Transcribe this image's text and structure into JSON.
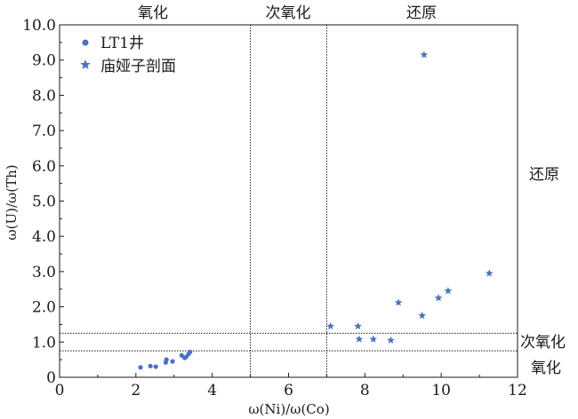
{
  "chart_data": {
    "type": "scatter",
    "xlabel": "ω(Ni)/ω(Co)",
    "ylabel": "ω(U)/ω(Th)",
    "xlim": [
      0,
      12
    ],
    "ylim": [
      0,
      10
    ],
    "x_ticks": [
      0,
      2,
      4,
      6,
      8,
      10,
      12
    ],
    "y_ticks": [
      0,
      1.0,
      2.0,
      3.0,
      4.0,
      5.0,
      6.0,
      7.0,
      8.0,
      9.0,
      10.0
    ],
    "x_tick_labels": [
      "0",
      "2",
      "4",
      "6",
      "8",
      "10",
      "12"
    ],
    "y_tick_labels": [
      "0",
      "1.0",
      "2.0",
      "3.0",
      "4.0",
      "5.0",
      "6.0",
      "7.0",
      "8.0",
      "9.0",
      "10.0"
    ],
    "grid": false,
    "legend_position": "top-left",
    "color": "#4a72c4",
    "series": [
      {
        "name": "LT1井",
        "marker": "circle",
        "points": [
          [
            2.12,
            0.28
          ],
          [
            2.38,
            0.32
          ],
          [
            2.52,
            0.3
          ],
          [
            2.78,
            0.42
          ],
          [
            2.8,
            0.5
          ],
          [
            2.96,
            0.45
          ],
          [
            3.2,
            0.62
          ],
          [
            3.28,
            0.55
          ],
          [
            3.32,
            0.58
          ],
          [
            3.38,
            0.66
          ],
          [
            3.42,
            0.72
          ]
        ]
      },
      {
        "name": "庙娅子剖面",
        "marker": "star",
        "points": [
          [
            7.1,
            1.45
          ],
          [
            7.82,
            1.45
          ],
          [
            7.85,
            1.08
          ],
          [
            8.22,
            1.08
          ],
          [
            8.68,
            1.05
          ],
          [
            8.88,
            2.12
          ],
          [
            9.5,
            1.75
          ],
          [
            9.93,
            2.25
          ],
          [
            10.18,
            2.45
          ],
          [
            11.26,
            2.95
          ],
          [
            9.55,
            9.15
          ]
        ]
      }
    ],
    "vertical_lines": [
      5.0,
      7.0
    ],
    "horizontal_lines": [
      0.75,
      1.25
    ],
    "top_zone_labels": [
      "氧化",
      "次氧化",
      "还原"
    ],
    "right_zone_labels": [
      "还原",
      "次氧化",
      "氧化"
    ]
  }
}
